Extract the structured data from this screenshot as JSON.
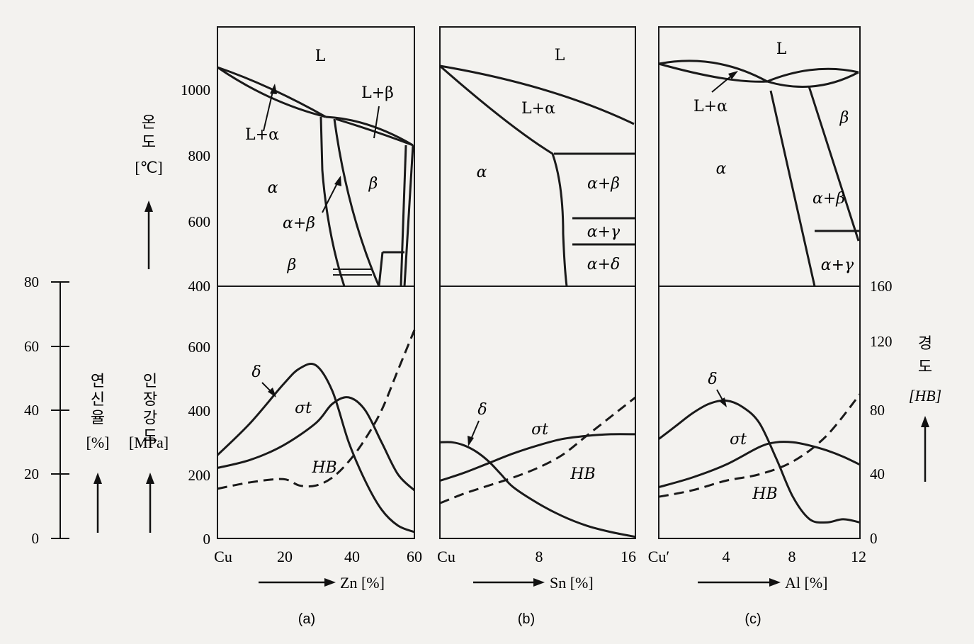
{
  "left_axes": {
    "temperature_title": [
      "온",
      "도"
    ],
    "temperature_unit": "[℃]",
    "temperature_ticks": [
      "1000",
      "800",
      "600",
      "400"
    ],
    "strength_title": [
      "인",
      "장",
      "강",
      "도"
    ],
    "strength_unit": "[MPa]",
    "strength_ticks": [
      "600",
      "400",
      "200",
      "0"
    ],
    "elongation_title": [
      "연",
      "신",
      "율"
    ],
    "elongation_unit": "[%]",
    "elongation_ticks": [
      "80",
      "60",
      "40",
      "20",
      "0"
    ]
  },
  "right_axis": {
    "title": [
      "경",
      "도"
    ],
    "unit": "[HB]",
    "ticks": [
      "160",
      "120",
      "80",
      "40",
      "0"
    ]
  },
  "panels": [
    {
      "caption": "(a)",
      "x_ticks": [
        "Cu",
        "20",
        "40",
        "60"
      ],
      "x_label": "Zn [%]",
      "phase_labels": [
        "L",
        "L+β",
        "L+α",
        "α",
        "α+β",
        "β",
        "β"
      ],
      "curve_labels": [
        "δ",
        "σt",
        "HB"
      ]
    },
    {
      "caption": "(b)",
      "x_ticks": [
        "Cu",
        "8",
        "16"
      ],
      "x_label": "Sn [%]",
      "phase_labels": [
        "L",
        "L+α",
        "α",
        "α+β",
        "α+γ",
        "α+δ"
      ],
      "curve_labels": [
        "δ",
        "σt",
        "HB"
      ]
    },
    {
      "caption": "(c)",
      "x_ticks": [
        "Cu′",
        "4",
        "8",
        "12"
      ],
      "x_label": "Al [%]",
      "phase_labels": [
        "L",
        "L+α",
        "β",
        "α",
        "α+β",
        "α+γ"
      ],
      "curve_labels": [
        "δ",
        "σt",
        "HB"
      ]
    }
  ],
  "chart_data": [
    {
      "type": "line",
      "title": "",
      "xlabel": "Zn [%]",
      "ylabel": "인장강도 [MPa] / 연신율 [%] / 경도 [HB]",
      "xlim": [
        0,
        60
      ],
      "series": [
        {
          "name": "δ",
          "x": [
            0,
            10,
            20,
            25,
            30,
            35,
            40,
            45,
            50,
            55,
            60
          ],
          "values": [
            26,
            36,
            48,
            53,
            54,
            46,
            30,
            18,
            9,
            4,
            2
          ]
        },
        {
          "name": "σt",
          "x": [
            0,
            10,
            20,
            30,
            35,
            40,
            45,
            50,
            55,
            60
          ],
          "values": [
            220,
            245,
            290,
            360,
            420,
            440,
            400,
            300,
            200,
            150
          ]
        },
        {
          "name": "HB",
          "x": [
            0,
            10,
            20,
            25,
            30,
            35,
            40,
            45,
            50,
            55,
            60
          ],
          "values": [
            31,
            35,
            37,
            33,
            33,
            38,
            48,
            62,
            80,
            105,
            130
          ]
        }
      ]
    },
    {
      "type": "line",
      "title": "",
      "xlabel": "Sn [%]",
      "ylabel": "인장강도 [MPa] / 연신율 [%] / 경도 [HB]",
      "xlim": [
        0,
        16
      ],
      "series": [
        {
          "name": "δ",
          "x": [
            0,
            1,
            2,
            3,
            4,
            5,
            6,
            8,
            10,
            12,
            14,
            16
          ],
          "values": [
            30,
            30,
            29,
            27,
            24,
            20,
            16,
            11,
            7,
            4,
            2,
            0.5
          ]
        },
        {
          "name": "σt",
          "x": [
            0,
            2,
            4,
            6,
            8,
            10,
            12,
            14,
            16
          ],
          "values": [
            180,
            205,
            235,
            265,
            290,
            310,
            320,
            325,
            325
          ]
        },
        {
          "name": "HB",
          "x": [
            0,
            2,
            4,
            6,
            8,
            10,
            12,
            14,
            16
          ],
          "values": [
            22,
            28,
            33,
            38,
            44,
            52,
            64,
            76,
            88
          ]
        }
      ]
    },
    {
      "type": "line",
      "title": "",
      "xlabel": "Al [%]",
      "ylabel": "인장강도 [MPa] / 연신율 [%] / 경도 [HB]",
      "xlim": [
        0,
        12
      ],
      "series": [
        {
          "name": "δ",
          "x": [
            0,
            1,
            2,
            3,
            4,
            5,
            6,
            7,
            8,
            9,
            10,
            11,
            12
          ],
          "values": [
            31,
            35,
            39,
            42,
            43,
            41,
            36,
            25,
            13,
            6,
            5,
            6,
            5
          ]
        },
        {
          "name": "σt",
          "x": [
            0,
            2,
            4,
            6,
            7,
            8,
            9,
            10,
            11,
            12
          ],
          "values": [
            160,
            190,
            230,
            285,
            300,
            300,
            290,
            275,
            255,
            230
          ]
        },
        {
          "name": "HB",
          "x": [
            0,
            2,
            4,
            6,
            8,
            10,
            12
          ],
          "values": [
            26,
            30,
            36,
            40,
            48,
            64,
            90
          ]
        }
      ]
    }
  ]
}
